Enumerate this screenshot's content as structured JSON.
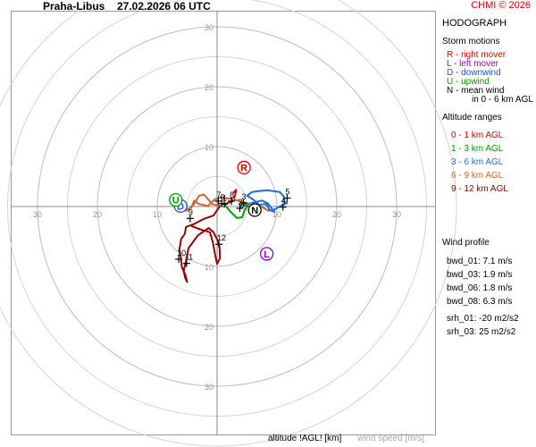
{
  "header": {
    "station": "Praha-Libus",
    "datetime": "27.02.2026 06 UTC",
    "credit": "CHMI © 2026"
  },
  "sidebar": {
    "title": "HODOGRAPH",
    "storm_title": "Storm motions",
    "storm_items": [
      {
        "label": "R - right mover",
        "color": "#e00000"
      },
      {
        "label": "L - left mover",
        "color": "#9900cc"
      },
      {
        "label": "D - downwind",
        "color": "#2255cc"
      },
      {
        "label": "U - upwind",
        "color": "#009900"
      },
      {
        "label": "N - mean wind",
        "color": "#000000"
      },
      {
        "label": "in 0 - 6 km AGL",
        "color": "#000000"
      }
    ],
    "alt_title": "Altitude ranges",
    "alt_items": [
      {
        "label": "0 - 1 km AGL",
        "color": "#e00000"
      },
      {
        "label": "1 - 3 km AGL",
        "color": "#009900"
      },
      {
        "label": "3 - 6 km AGL",
        "color": "#1e6fd0"
      },
      {
        "label": "6 - 9 km AGL",
        "color": "#cc6633"
      },
      {
        "label": "9 - 12 km AGL",
        "color": "#990000"
      }
    ],
    "profile_title": "Wind profile",
    "profile_items": [
      "bwd_01: 7.1 m/s",
      "bwd_03: 1.9 m/s",
      "bwd_06: 1.8 m/s",
      "bwd_08: 6.3 m/s"
    ],
    "srh_items": [
      "srh_01: -20 m2/s2",
      "srh_03: 25 m2/s2"
    ]
  },
  "footer": {
    "altitude_label": "altitude !AGL! [km]",
    "speed_label": "wind speed [m/s]"
  },
  "chart_data": {
    "type": "hodograph",
    "rings": [
      5,
      10,
      15,
      20,
      25,
      30,
      35,
      40
    ],
    "ring_labels": [
      10,
      20,
      30
    ],
    "tick_labels": {
      "left": [
        "30",
        "20",
        "10"
      ],
      "right": [
        "10",
        "20",
        "30"
      ],
      "up": [
        "10",
        "20",
        "30"
      ],
      "down": [
        "10",
        "20",
        "30"
      ]
    },
    "segments": [
      {
        "range": "0 - 1 km AGL",
        "color": "#e00000",
        "points": [
          [
            2.8,
            2.4
          ],
          [
            3.2,
            2.8
          ],
          [
            3.0,
            1.8
          ],
          [
            2.6,
            0.9
          ],
          [
            1.8,
            0.6
          ],
          [
            1.2,
            0.4
          ]
        ]
      },
      {
        "range": "1 - 3 km AGL",
        "color": "#009900",
        "points": [
          [
            1.2,
            0.4
          ],
          [
            2.2,
            -0.8
          ],
          [
            3.3,
            -1.9
          ],
          [
            4.2,
            -1.8
          ],
          [
            4.6,
            -0.6
          ],
          [
            5.2,
            0.2
          ],
          [
            4.2,
            0.5
          ],
          [
            3.8,
            -0.3
          ]
        ]
      },
      {
        "range": "3 - 6 km AGL",
        "color": "#1e6fd0",
        "points": [
          [
            3.8,
            -0.3
          ],
          [
            5.4,
            0.5
          ],
          [
            7.5,
            1.0
          ],
          [
            8.5,
            0.5
          ],
          [
            9.6,
            -0.9
          ],
          [
            8.8,
            -0.6
          ],
          [
            8.2,
            0.4
          ],
          [
            7.0,
            0.3
          ],
          [
            6.0,
            1.2
          ],
          [
            5.0,
            1.8
          ],
          [
            5.8,
            2.4
          ],
          [
            7.0,
            2.6
          ],
          [
            8.5,
            2.7
          ],
          [
            10.5,
            2.4
          ],
          [
            11.2,
            1.6
          ],
          [
            11.1,
            0.8
          ],
          [
            11.7,
            0.6
          ],
          [
            10.8,
            0.2
          ],
          [
            9.6,
            -0.5
          ],
          [
            8.6,
            -0.7
          ]
        ]
      },
      {
        "range": "6 - 9 km AGL",
        "color": "#cc6633",
        "points": [
          [
            8.6,
            -0.7
          ],
          [
            7.0,
            0.2
          ],
          [
            4.8,
            0.6
          ],
          [
            2.4,
            1.3
          ],
          [
            0.5,
            1.5
          ],
          [
            -0.4,
            1.2
          ],
          [
            -1.5,
            0.1
          ],
          [
            -3.0,
            0.4
          ],
          [
            -3.8,
            1.0
          ],
          [
            -4.3,
            -0.2
          ],
          [
            -5.5,
            -0.7
          ],
          [
            -4.8,
            -0.6
          ],
          [
            -4.0,
            0.2
          ],
          [
            -3.0,
            1.8
          ],
          [
            -2.2,
            2.0
          ],
          [
            -0.8,
            0.4
          ],
          [
            0.5,
            0.1
          ]
        ]
      },
      {
        "range": "9 - 12 km AGL",
        "color": "#990000",
        "points": [
          [
            0.5,
            0.1
          ],
          [
            -0.6,
            -1.5
          ],
          [
            -2.3,
            -2.1
          ],
          [
            -4.0,
            -3.0
          ],
          [
            -5.2,
            -3.4
          ],
          [
            -5.4,
            -4.6
          ],
          [
            -6.0,
            -5.4
          ],
          [
            -6.3,
            -7.2
          ],
          [
            -6.0,
            -8.8
          ],
          [
            -5.9,
            -10.1
          ],
          [
            -5.3,
            -11.4
          ],
          [
            -5.0,
            -12.6
          ],
          [
            -5.3,
            -12.0
          ],
          [
            -5.6,
            -10.8
          ],
          [
            -5.0,
            -8.3
          ],
          [
            -4.8,
            -7.0
          ],
          [
            -3.2,
            -4.8
          ],
          [
            -1.4,
            -3.6
          ],
          [
            -0.6,
            -4.3
          ],
          [
            0.1,
            -5.7
          ],
          [
            0.4,
            -6.8
          ],
          [
            0.5,
            -8.6
          ],
          [
            0.0,
            -9.6
          ],
          [
            -0.3,
            -8.2
          ],
          [
            -0.7,
            -6.0
          ],
          [
            -1.2,
            -4.3
          ],
          [
            -2.6,
            -3.9
          ],
          [
            -4.2,
            -3.3
          ]
        ]
      }
    ],
    "height_markers": [
      {
        "label": "1",
        "u": 1.2,
        "v": 0.4
      },
      {
        "label": "2",
        "u": 3.8,
        "v": -0.3
      },
      {
        "label": "3",
        "u": 4.4,
        "v": 0.6
      },
      {
        "label": "4",
        "u": 11.0,
        "v": -0.1
      },
      {
        "label": "5",
        "u": 11.7,
        "v": 1.4
      },
      {
        "label": "6",
        "u": 0.8,
        "v": 0.5
      },
      {
        "label": "7",
        "u": 0.2,
        "v": 0.9
      },
      {
        "label": "8",
        "u": 2.4,
        "v": 0.9
      },
      {
        "label": "9",
        "u": -4.5,
        "v": -2.0
      },
      {
        "label": "10",
        "u": -6.4,
        "v": -8.8
      },
      {
        "label": "11",
        "u": -5.1,
        "v": -9.5
      },
      {
        "label": "12",
        "u": 0.3,
        "v": -6.3
      }
    ],
    "storm_motions": [
      {
        "key": "R",
        "u": 4.5,
        "v": 6.5,
        "color": "#e00000"
      },
      {
        "key": "L",
        "u": 8.3,
        "v": -7.9,
        "color": "#9900cc"
      },
      {
        "key": "D",
        "u": -6.1,
        "v": 0.1,
        "color": "#2255cc"
      },
      {
        "key": "U",
        "u": -6.9,
        "v": 1.1,
        "color": "#009900"
      },
      {
        "key": "N",
        "u": 6.3,
        "v": -0.6,
        "color": "#000000"
      }
    ]
  }
}
